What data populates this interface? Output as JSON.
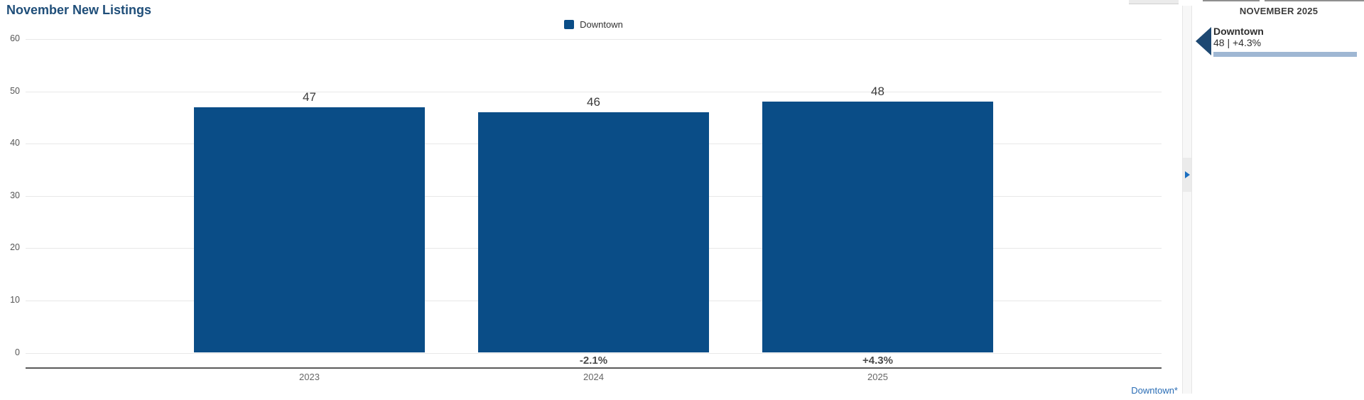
{
  "title": "November New Listings",
  "legend": {
    "label": "Downtown"
  },
  "chart_data": {
    "type": "bar",
    "title": "November New Listings",
    "categories": [
      "2023",
      "2024",
      "2025"
    ],
    "series": [
      {
        "name": "Downtown",
        "values": [
          47,
          46,
          48
        ]
      }
    ],
    "value_labels": [
      "47",
      "46",
      "48"
    ],
    "pct_change_labels": [
      null,
      "-2.1%",
      "+4.3%"
    ],
    "ylim": [
      0,
      60
    ],
    "yticks": [
      0,
      10,
      20,
      30,
      40,
      50,
      60
    ],
    "grid": true,
    "legend_position": "top-center",
    "bar_color": "#0A4D87"
  },
  "footnote": {
    "label": "Downtown*"
  },
  "gutter": {
    "icon": "expand-right-arrow-icon"
  },
  "side_panel": {
    "heading": "NOVEMBER 2025",
    "stat": {
      "icon": "left-pointer-arrow-icon",
      "name": "Downtown",
      "value_line": "48 | +4.3%",
      "progress_color": "#9FB7D3"
    }
  },
  "colors": {
    "title": "#1F4E79",
    "bar": "#0A4D87",
    "axis_line": "#5a5a5a",
    "link": "#2A6DB5",
    "stat_arrow": "#1D4872",
    "gutter_arrow": "#1B6FC0"
  }
}
